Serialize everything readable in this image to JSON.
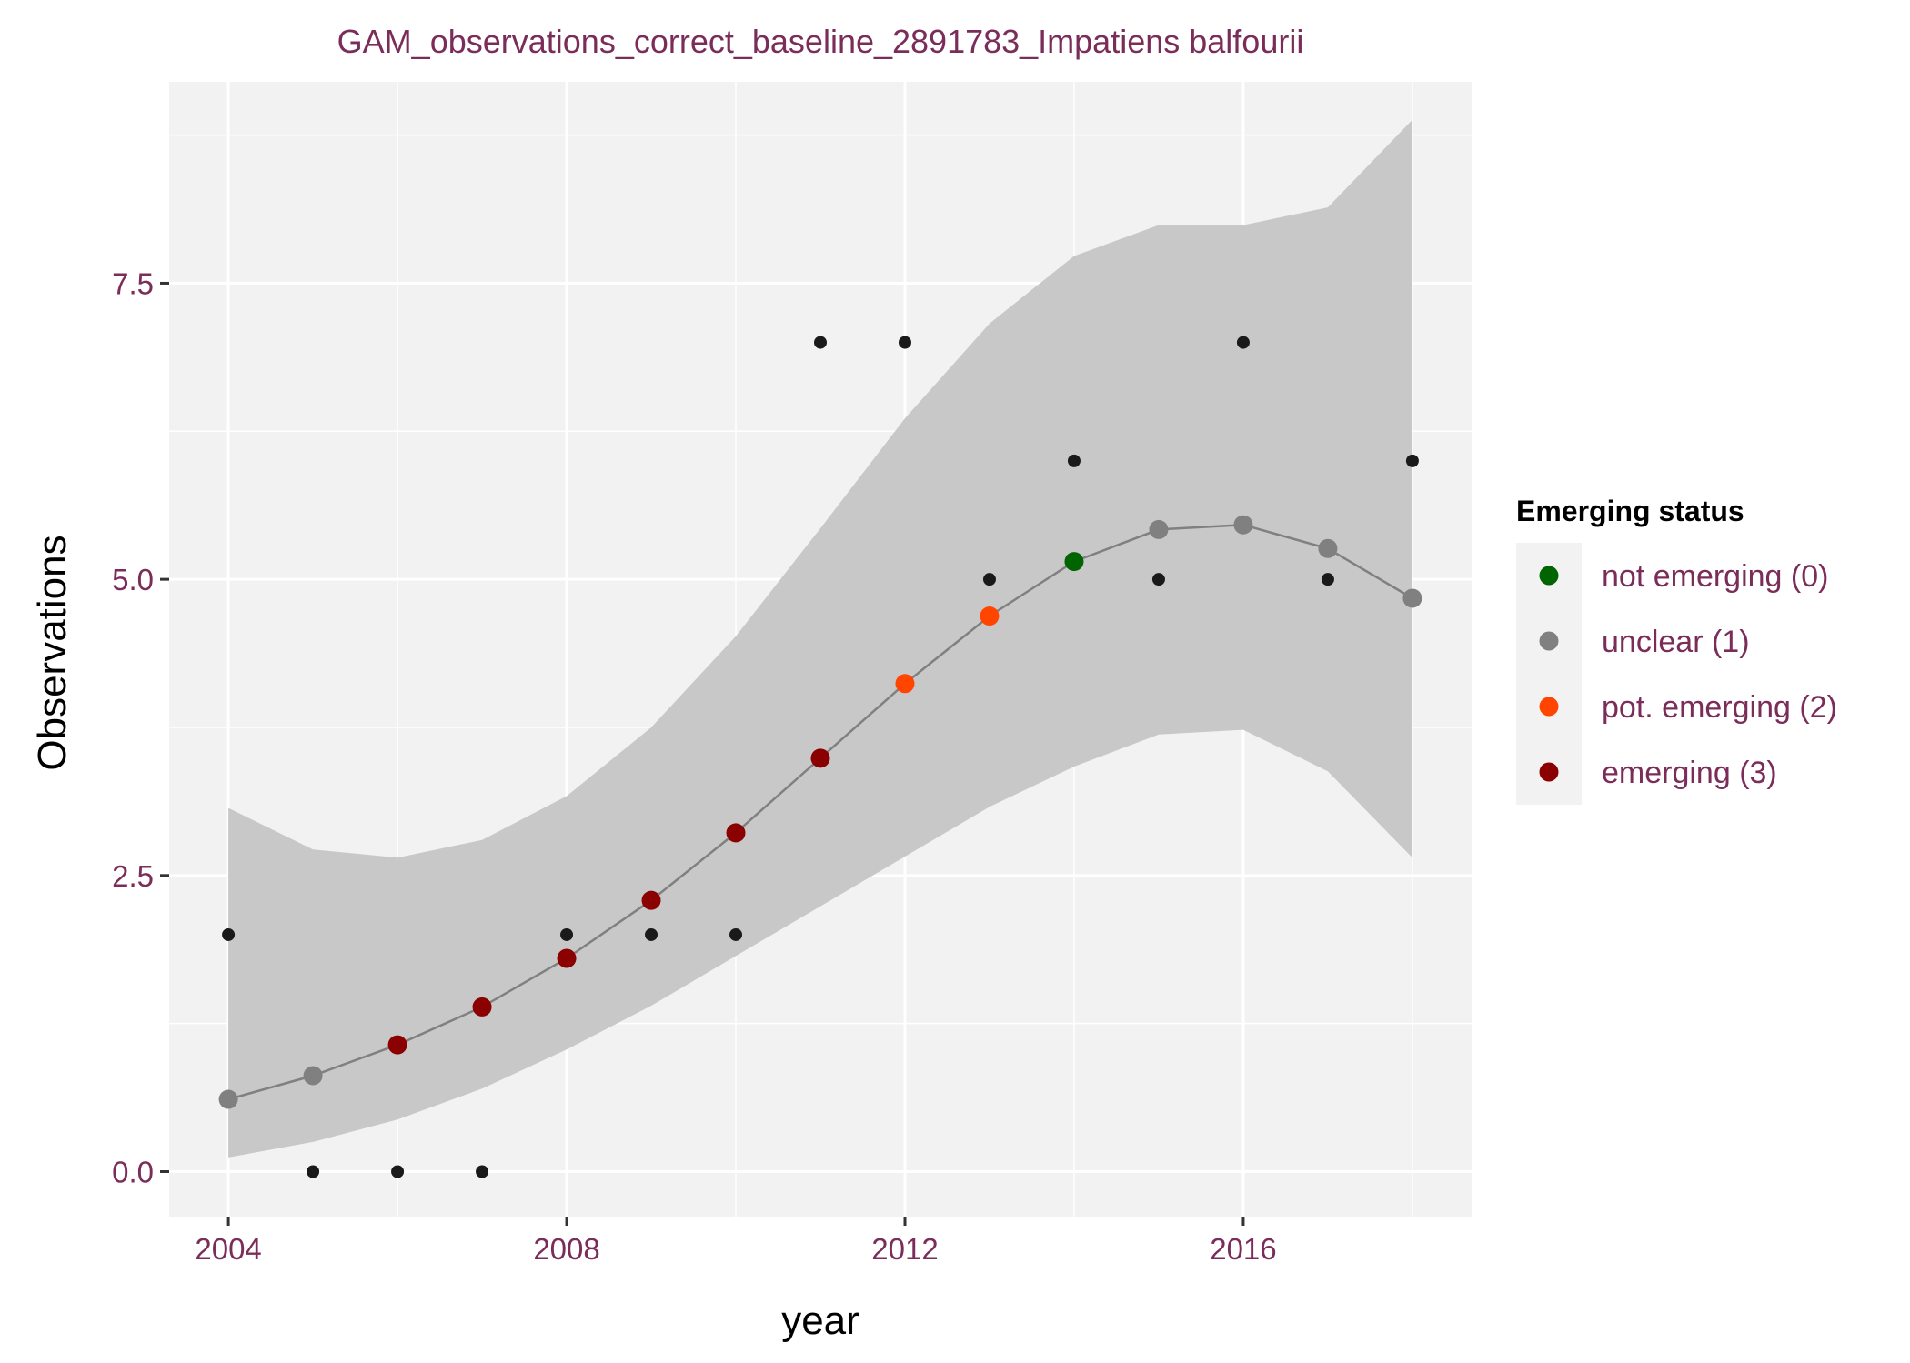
{
  "chart_data": {
    "type": "scatter",
    "title": "GAM_observations_correct_baseline_2891783_Impatiens balfourii",
    "xlabel": "year",
    "ylabel": "Observations",
    "xlim": [
      2003.3,
      2018.7
    ],
    "ylim": [
      -0.38,
      9.2
    ],
    "x_ticks": [
      2004,
      2008,
      2012,
      2016
    ],
    "x_tick_labels": [
      "2004",
      "2008",
      "2012",
      "2016"
    ],
    "y_ticks": [
      0,
      2.5,
      5,
      7.5
    ],
    "y_tick_labels": [
      "0.0",
      "2.5",
      "5.0",
      "7.5"
    ],
    "grid": true,
    "observed": {
      "x": [
        2004,
        2005,
        2006,
        2007,
        2008,
        2009,
        2010,
        2011,
        2012,
        2013,
        2014,
        2015,
        2016,
        2017,
        2018
      ],
      "y": [
        2,
        0,
        0,
        0,
        2,
        2,
        2,
        7,
        7,
        5,
        6,
        5,
        7,
        5,
        6
      ],
      "color": "#1a1a1a"
    },
    "fit": {
      "x": [
        2004,
        2005,
        2006,
        2007,
        2008,
        2009,
        2010,
        2011,
        2012,
        2013,
        2014,
        2015,
        2016,
        2017,
        2018
      ],
      "y": [
        0.61,
        0.81,
        1.07,
        1.39,
        1.8,
        2.29,
        2.86,
        3.49,
        4.12,
        4.69,
        5.15,
        5.42,
        5.46,
        5.26,
        4.84
      ],
      "lower": [
        0.12,
        0.25,
        0.44,
        0.7,
        1.03,
        1.4,
        1.82,
        2.24,
        2.66,
        3.08,
        3.42,
        3.69,
        3.73,
        3.38,
        2.65
      ],
      "upper": [
        3.07,
        2.72,
        2.65,
        2.8,
        3.17,
        3.75,
        4.52,
        5.43,
        6.36,
        7.16,
        7.73,
        7.99,
        7.99,
        8.14,
        8.88
      ],
      "status": [
        1,
        1,
        3,
        3,
        3,
        3,
        3,
        3,
        2,
        2,
        0,
        1,
        1,
        1,
        1
      ],
      "line_color": "#808080",
      "band_color": "#c8c8c8"
    },
    "legend": {
      "title": "Emerging status",
      "position": "right",
      "items": [
        {
          "label": "not emerging (0)",
          "color": "#006400"
        },
        {
          "label": "unclear (1)",
          "color": "#808080"
        },
        {
          "label": "pot. emerging (2)",
          "color": "#ff4500"
        },
        {
          "label": "emerging (3)",
          "color": "#8b0000"
        }
      ]
    },
    "panel_background": "#f2f2f2",
    "text_color": "#7b2d5a"
  }
}
